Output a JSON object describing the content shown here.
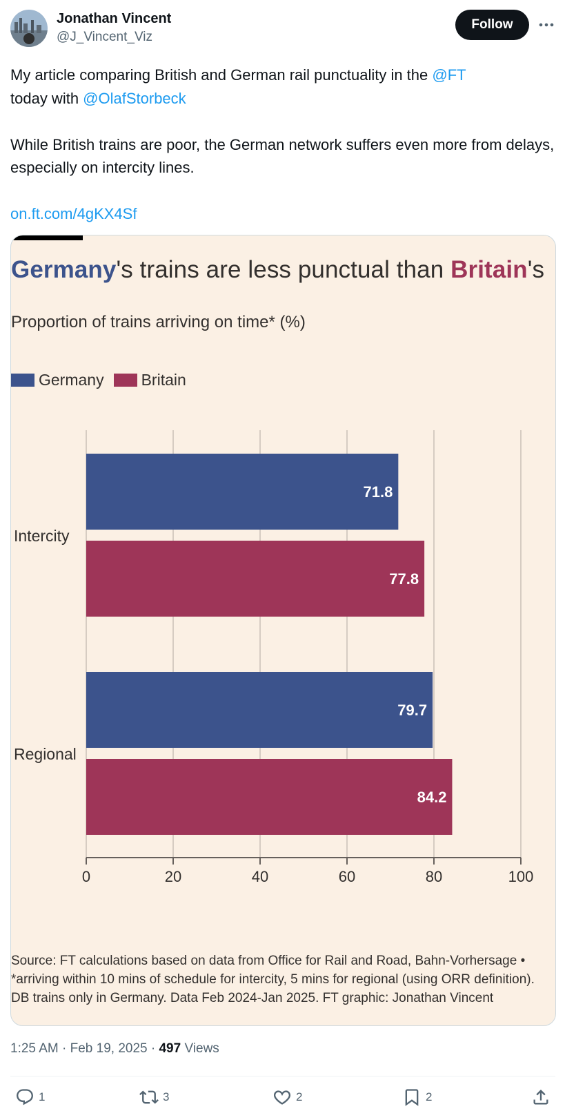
{
  "author": {
    "name": "Jonathan Vincent",
    "handle": "@J_Vincent_Viz",
    "follow_label": "Follow"
  },
  "tweet": {
    "line1_text": "My article comparing British and German rail punctuality in the ",
    "mention_ft": "@FT",
    "line2_text": "today with ",
    "mention_olaf": "@OlafStorbeck",
    "paragraph2": "While British trains are poor, the German network suffers even more from delays, especially on intercity lines.",
    "link": "on.ft.com/4gKX4Sf"
  },
  "chart_title": {
    "germany": "Germany",
    "middle": "'s trains are less punctual than ",
    "britain": "Britain",
    "end": "'s"
  },
  "chart_data": {
    "type": "bar",
    "orientation": "horizontal",
    "subtitle": "Proportion of trains arriving on time* (%)",
    "categories": [
      "Intercity",
      "Regional"
    ],
    "series": [
      {
        "name": "Germany",
        "color": "#3c538c",
        "values": [
          71.8,
          79.7
        ]
      },
      {
        "name": "Britain",
        "color": "#9e3558",
        "values": [
          77.8,
          84.2
        ]
      }
    ],
    "xlim": [
      0,
      100
    ],
    "xticks": [
      "0",
      "20",
      "40",
      "60",
      "80",
      "100"
    ],
    "grid": true,
    "legend": "top-left"
  },
  "chart_source": "Source: FT calculations based on data from Office for Rail and Road, Bahn-Vorhersage • *arriving within 10 mins of schedule for intercity, 5 mins for regional (using ORR definition). DB trains only in Germany. Data Feb 2024-Jan 2025. FT graphic: Jonathan Vincent",
  "meta": {
    "time": "1:25 AM",
    "date": "Feb 19, 2025",
    "sep": "·",
    "views_count": "497",
    "views_label": "Views"
  },
  "actions": {
    "replies": "1",
    "reposts": "3",
    "likes": "2",
    "bookmarks": "2"
  }
}
